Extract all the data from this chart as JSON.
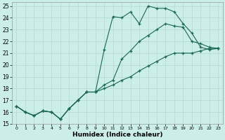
{
  "xlabel": "Humidex (Indice chaleur)",
  "bg_color": "#cceee8",
  "grid_color": "#b8ddd6",
  "line_color": "#1a6655",
  "xlim": [
    -0.5,
    23.5
  ],
  "ylim": [
    15,
    25.3
  ],
  "yticks": [
    15,
    16,
    17,
    18,
    19,
    20,
    21,
    22,
    23,
    24,
    25
  ],
  "xticks": [
    0,
    1,
    2,
    3,
    4,
    5,
    6,
    7,
    8,
    9,
    10,
    11,
    12,
    13,
    14,
    15,
    16,
    17,
    18,
    19,
    20,
    21,
    22,
    23
  ],
  "curve1_x": [
    0,
    1,
    2,
    3,
    4,
    5,
    6,
    7,
    8,
    9,
    10,
    11,
    12,
    13,
    14,
    15,
    16,
    17,
    18,
    19,
    20,
    21,
    22,
    23
  ],
  "curve1_y": [
    16.5,
    16.0,
    15.7,
    16.1,
    16.0,
    15.4,
    16.3,
    17.0,
    17.7,
    17.7,
    21.3,
    24.1,
    24.0,
    24.5,
    23.5,
    25.0,
    24.8,
    24.8,
    24.5,
    23.5,
    22.7,
    21.5,
    21.3,
    21.4
  ],
  "curve2_x": [
    0,
    1,
    2,
    3,
    4,
    5,
    6,
    7,
    8,
    9,
    10,
    11,
    12,
    13,
    14,
    15,
    16,
    17,
    18,
    19,
    20,
    21,
    22,
    23
  ],
  "curve2_y": [
    16.5,
    16.0,
    15.7,
    16.1,
    16.0,
    15.4,
    16.3,
    17.0,
    17.7,
    17.7,
    18.3,
    18.7,
    20.5,
    21.2,
    22.0,
    22.5,
    23.0,
    23.5,
    23.3,
    23.2,
    22.0,
    21.8,
    21.5,
    21.4
  ],
  "curve3_x": [
    0,
    1,
    2,
    3,
    4,
    5,
    6,
    7,
    8,
    9,
    10,
    11,
    12,
    13,
    14,
    15,
    16,
    17,
    18,
    19,
    20,
    21,
    22,
    23
  ],
  "curve3_y": [
    16.5,
    16.0,
    15.7,
    16.1,
    16.0,
    15.4,
    16.3,
    17.0,
    17.7,
    17.7,
    18.0,
    18.3,
    18.7,
    19.0,
    19.5,
    19.9,
    20.3,
    20.7,
    21.0,
    21.0,
    21.0,
    21.2,
    21.4,
    21.4
  ]
}
